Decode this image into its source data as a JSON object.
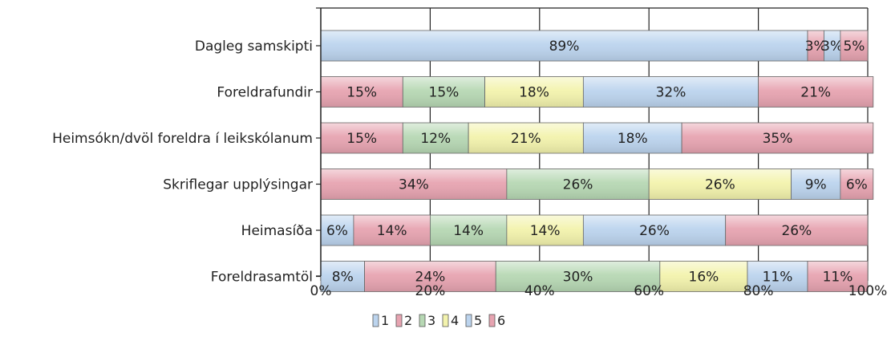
{
  "chart_data": {
    "type": "bar",
    "orientation": "horizontal",
    "stacked": true,
    "percent_stacked": true,
    "title": "",
    "xlabel": "",
    "ylabel": "",
    "xlim": [
      0,
      100
    ],
    "x_ticks": [
      "0%",
      "20%",
      "40%",
      "60%",
      "80%",
      "100%"
    ],
    "grid": true,
    "legend_position": "bottom",
    "categories": [
      "Dagleg samskipti",
      "Foreldrafundir",
      "Heimsókn/dvöl foreldra í leikskólanum",
      "Skriflegar upplýsingar",
      "Heimasíða",
      "Foreldrasamtöl"
    ],
    "series": [
      {
        "name": "1",
        "color": "#bcd4ee",
        "values": [
          89,
          0,
          0,
          0,
          6,
          8
        ],
        "labels": [
          "89%",
          "",
          "",
          "",
          "6%",
          "8%"
        ]
      },
      {
        "name": "2",
        "color": "#e7a4b1",
        "values": [
          3,
          15,
          15,
          34,
          14,
          24
        ],
        "labels": [
          "3%",
          "15%",
          "15%",
          "34%",
          "14%",
          "24%"
        ]
      },
      {
        "name": "3",
        "color": "#b7d8b4",
        "values": [
          0,
          15,
          12,
          26,
          14,
          30
        ],
        "labels": [
          "",
          "15%",
          "12%",
          "26%",
          "14%",
          "30%"
        ]
      },
      {
        "name": "4",
        "color": "#f3f3ad",
        "values": [
          0,
          18,
          21,
          26,
          14,
          16
        ],
        "labels": [
          "",
          "18%",
          "21%",
          "26%",
          "14%",
          "16%"
        ]
      },
      {
        "name": "5",
        "color": "#bcd4ee",
        "values": [
          3,
          32,
          18,
          9,
          26,
          11
        ],
        "labels": [
          "3%",
          "32%",
          "18%",
          "9%",
          "26%",
          "11%"
        ]
      },
      {
        "name": "6",
        "color": "#e7a4b1",
        "values": [
          5,
          21,
          35,
          6,
          26,
          11
        ],
        "labels": [
          "5%",
          "21%",
          "35%",
          "6%",
          "26%",
          "11%"
        ]
      }
    ]
  }
}
